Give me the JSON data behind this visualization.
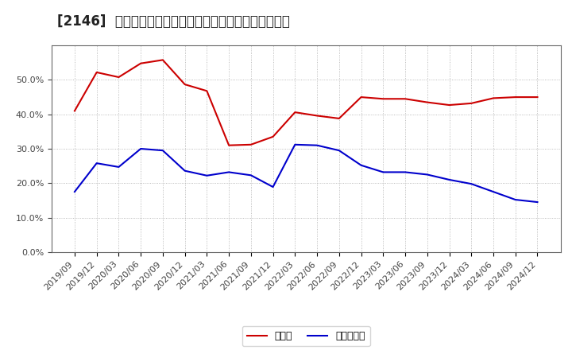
{
  "title": "[2146]  現預金、有利子負債の総資産に対する比率の推移",
  "x_labels": [
    "2019/09",
    "2019/12",
    "2020/03",
    "2020/06",
    "2020/09",
    "2020/12",
    "2021/03",
    "2021/06",
    "2021/09",
    "2021/12",
    "2022/03",
    "2022/06",
    "2022/09",
    "2022/12",
    "2023/03",
    "2023/06",
    "2023/09",
    "2023/12",
    "2024/03",
    "2024/06",
    "2024/09",
    "2024/12"
  ],
  "cash_values": [
    0.41,
    0.522,
    0.508,
    0.548,
    0.558,
    0.487,
    0.468,
    0.31,
    0.312,
    0.335,
    0.406,
    0.396,
    0.388,
    0.45,
    0.445,
    0.445,
    0.435,
    0.427,
    0.432,
    0.447,
    0.45,
    0.45
  ],
  "debt_values": [
    0.175,
    0.258,
    0.247,
    0.3,
    0.295,
    0.236,
    0.222,
    0.232,
    0.223,
    0.189,
    0.312,
    0.31,
    0.295,
    0.252,
    0.232,
    0.232,
    0.225,
    0.21,
    0.198,
    0.175,
    0.152,
    0.145
  ],
  "cash_color": "#cc0000",
  "debt_color": "#0000cc",
  "background_color": "#ffffff",
  "plot_bg_color": "#ffffff",
  "grid_color": "#aaaaaa",
  "ylim": [
    0.0,
    0.6
  ],
  "yticks": [
    0.0,
    0.1,
    0.2,
    0.3,
    0.4,
    0.5
  ],
  "legend_cash": "現預金",
  "legend_debt": "有利子負債",
  "title_fontsize": 12,
  "tick_fontsize": 8,
  "legend_fontsize": 9
}
